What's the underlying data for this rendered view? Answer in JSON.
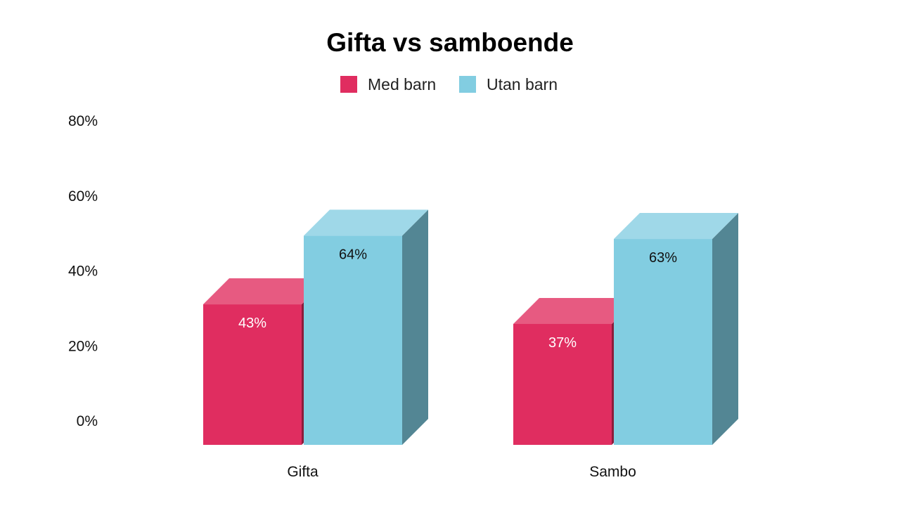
{
  "chart_data": {
    "type": "bar",
    "title": "Gifta vs samboende",
    "categories": [
      "Gifta",
      "Sambo"
    ],
    "series": [
      {
        "name": "Med barn",
        "values": [
          43,
          37
        ],
        "labels": [
          "43%",
          "37%"
        ],
        "color": "#e02d60",
        "top_color": "#e75a81",
        "side_color": "#8c1c3c",
        "label_color": "#ffffff"
      },
      {
        "name": "Utan barn",
        "values": [
          64,
          63
        ],
        "labels": [
          "64%",
          "63%"
        ],
        "color": "#82cde1",
        "top_color": "#9fd8e8",
        "side_color": "#538694",
        "label_color": "#111111"
      }
    ],
    "y_ticks": [
      "0%",
      "20%",
      "40%",
      "60%",
      "80%"
    ],
    "y_tick_values": [
      0,
      20,
      40,
      60,
      80
    ],
    "ylim": [
      0,
      80
    ],
    "legend_position": "top-center",
    "grid": false,
    "style": "3d-bar"
  }
}
